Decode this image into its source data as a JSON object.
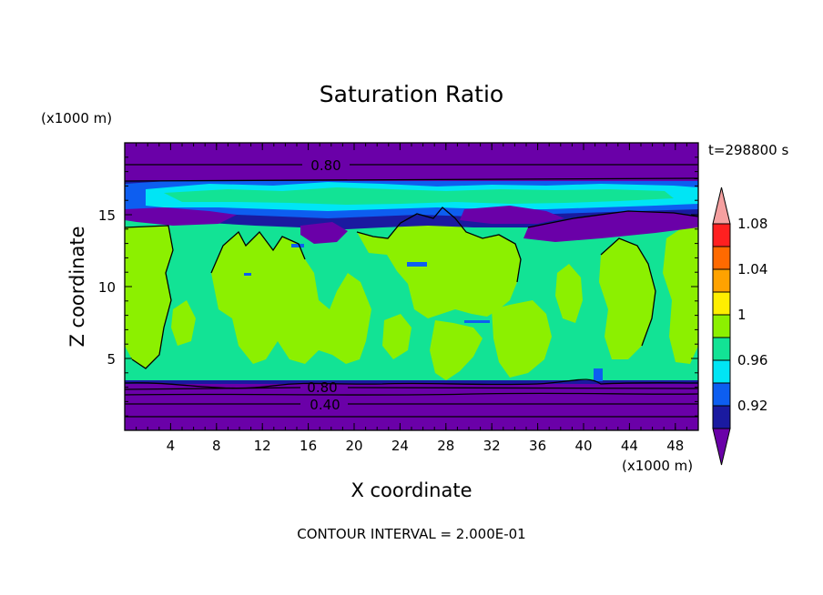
{
  "chart_data": {
    "type": "contour",
    "title": "Saturation Ratio",
    "time_label": "t=298800 s",
    "xlabel": "X coordinate",
    "ylabel": "Z coordinate",
    "x_unit": "(x1000 m)",
    "z_unit": "(x1000 m)",
    "xlim": [
      0,
      50
    ],
    "zlim": [
      0,
      20
    ],
    "x_ticks": [
      "4",
      "8",
      "12",
      "16",
      "20",
      "24",
      "28",
      "32",
      "36",
      "40",
      "44",
      "48"
    ],
    "z_ticks": [
      "5",
      "10",
      "15"
    ],
    "contour_labels": [
      "0.80",
      "0.80",
      "0.40"
    ],
    "footer": "CONTOUR INTERVAL = 2.000E-01",
    "colorbar": {
      "labels": [
        "0.92",
        "0.96",
        "1",
        "1.04",
        "1.08"
      ],
      "colors": [
        "#6a00a8",
        "#1a1aa0",
        "#0d5ef0",
        "#00e5f5",
        "#12e395",
        "#8cf000",
        "#ffee00",
        "#ffa200",
        "#ff6a00",
        "#ff2020",
        "#f5a0a0"
      ]
    },
    "field_colors": {
      "lowest": "#6a00a8",
      "dark_blue": "#1a1aa0",
      "blue": "#0d5ef0",
      "cyan": "#00e5f5",
      "green": "#12e395",
      "lime": "#8cf000"
    }
  }
}
